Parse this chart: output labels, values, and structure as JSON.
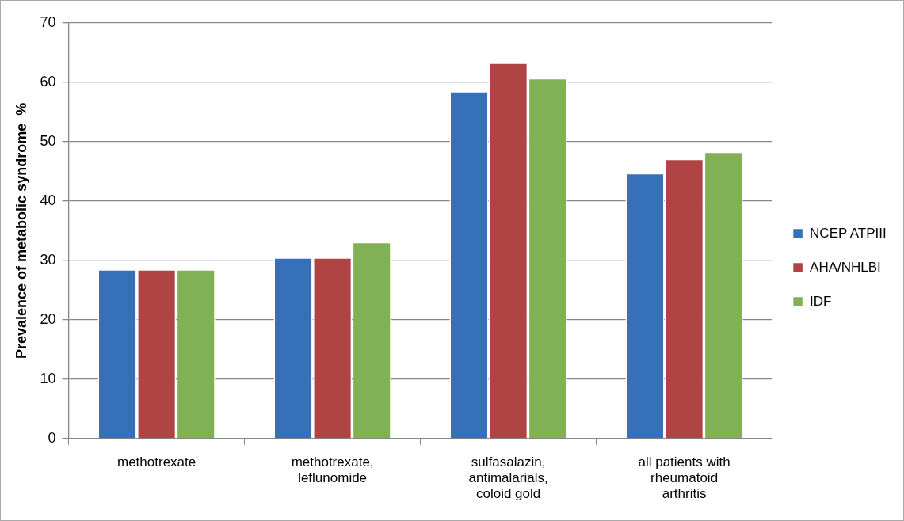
{
  "chart_data": {
    "type": "bar",
    "ylabel": "Prevalence of metabolic syndrome  %",
    "categories": [
      "methotrexate",
      "methotrexate, leflunomide",
      "sulfasalazin, antimalarials, coloid gold",
      "all patients with rheumatoid arthritis"
    ],
    "series": [
      {
        "name": "NCEP ATPIII",
        "color": "#3570b8",
        "values": [
          28.5,
          30.5,
          58.5,
          44.7
        ]
      },
      {
        "name": "AHA/NHLBI",
        "color": "#b04343",
        "values": [
          28.5,
          30.5,
          63.3,
          47.1
        ]
      },
      {
        "name": "IDF",
        "color": "#82b155",
        "values": [
          28.5,
          33.1,
          60.7,
          48.3
        ]
      }
    ],
    "ylim": [
      0,
      70
    ],
    "yticks": [
      0,
      10,
      20,
      30,
      40,
      50,
      60,
      70
    ],
    "grid": "y",
    "legend": "right"
  }
}
